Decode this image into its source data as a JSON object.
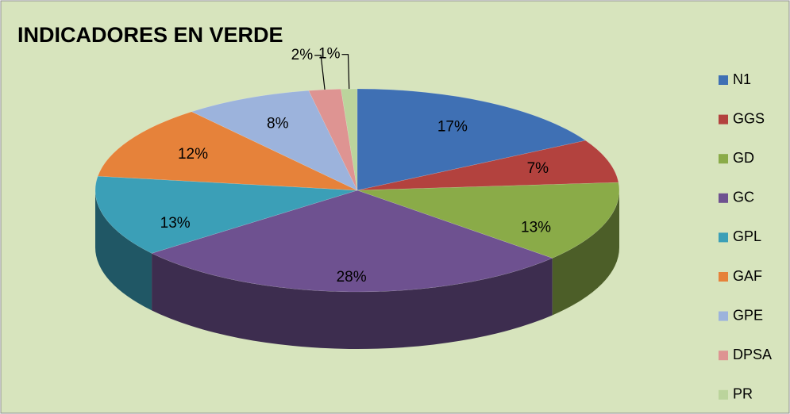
{
  "chart_data": {
    "type": "pie",
    "title": "INDICADORES EN VERDE",
    "categories": [
      "N1",
      "GGS",
      "GD",
      "GC",
      "GPL",
      "GAF",
      "GPE",
      "DPSA",
      "PR"
    ],
    "values": [
      17,
      7,
      13,
      28,
      13,
      12,
      8,
      2,
      1
    ],
    "value_labels": [
      "17%",
      "7%",
      "13%",
      "28%",
      "13%",
      "12%",
      "8%",
      "2%",
      "1%"
    ],
    "colors": [
      "#3f70b4",
      "#b3423e",
      "#8aab48",
      "#6e5190",
      "#3b9fb7",
      "#e6823a",
      "#9cb3dc",
      "#de9492",
      "#bbd49c"
    ],
    "legend": "right"
  }
}
